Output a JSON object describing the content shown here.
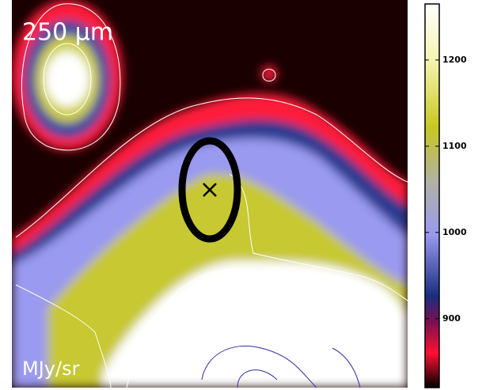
{
  "chart_data": {
    "type": "image",
    "title": "250 μm",
    "colorbar_label": "MJy/sr",
    "clim": [
      820,
      1265
    ],
    "yticks": [
      900,
      1000,
      1100,
      1200
    ]
  }
}
